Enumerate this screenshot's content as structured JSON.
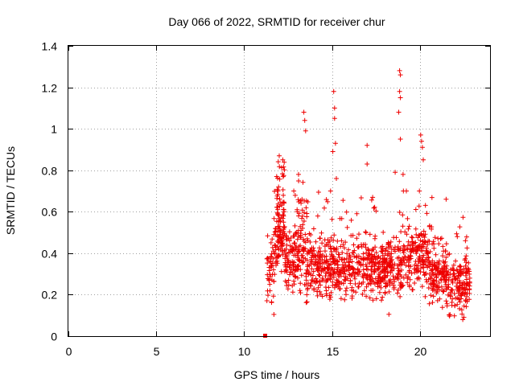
{
  "chart_data": {
    "type": "scatter",
    "title": "Day 066 of 2022, SRMTID for receiver chur",
    "xlabel": "GPS time / hours",
    "ylabel": "SRMTID / TECUs",
    "xlim": [
      0,
      24
    ],
    "ylim": [
      0,
      1.4
    ],
    "xticks": [
      0,
      5,
      10,
      15,
      20
    ],
    "xtick_labels": [
      "0",
      "5",
      "10",
      "15",
      "20"
    ],
    "yticks": [
      0,
      0.2,
      0.4,
      0.6,
      0.8,
      1.0,
      1.2,
      1.4
    ],
    "ytick_labels": [
      "0",
      "0.2",
      "0.4",
      "0.6",
      "0.8",
      "1",
      "1.2",
      "1.4"
    ],
    "grid": true,
    "marker": "+",
    "marker_color": "#ee0000",
    "zero_marker": {
      "x": 11.2,
      "y": 0.0,
      "shape": "square"
    },
    "series": [
      {
        "name": "SRMTID",
        "x_start": 11.3,
        "x_end": 22.85,
        "n_points": 1400,
        "typical_range": [
          0.1,
          0.6
        ],
        "peaks": [
          {
            "x": 12.0,
            "y": 0.87
          },
          {
            "x": 12.2,
            "y": 0.85
          },
          {
            "x": 13.1,
            "y": 0.78
          },
          {
            "x": 13.4,
            "y": 1.08
          },
          {
            "x": 13.45,
            "y": 1.04
          },
          {
            "x": 13.5,
            "y": 0.99
          },
          {
            "x": 15.1,
            "y": 1.18
          },
          {
            "x": 15.15,
            "y": 1.1
          },
          {
            "x": 15.15,
            "y": 1.05
          },
          {
            "x": 15.2,
            "y": 0.93
          },
          {
            "x": 15.05,
            "y": 0.89
          },
          {
            "x": 15.25,
            "y": 0.76
          },
          {
            "x": 17.0,
            "y": 0.92
          },
          {
            "x": 17.0,
            "y": 0.83
          },
          {
            "x": 18.6,
            "y": 0.79
          },
          {
            "x": 18.85,
            "y": 1.28
          },
          {
            "x": 18.9,
            "y": 1.26
          },
          {
            "x": 18.85,
            "y": 1.18
          },
          {
            "x": 18.9,
            "y": 1.15
          },
          {
            "x": 18.8,
            "y": 1.08
          },
          {
            "x": 18.9,
            "y": 0.95
          },
          {
            "x": 19.05,
            "y": 0.78
          },
          {
            "x": 20.05,
            "y": 0.97
          },
          {
            "x": 20.1,
            "y": 0.94
          },
          {
            "x": 20.15,
            "y": 0.91
          },
          {
            "x": 20.2,
            "y": 0.85
          },
          {
            "x": 21.5,
            "y": 0.66
          },
          {
            "x": 22.6,
            "y": 0.46
          }
        ]
      }
    ]
  }
}
